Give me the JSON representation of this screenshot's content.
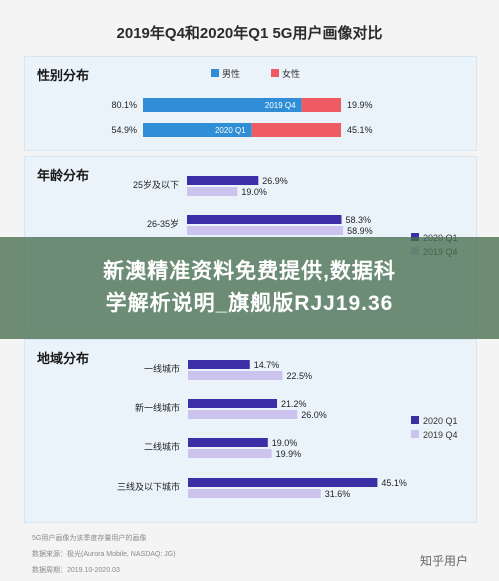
{
  "title": "2019年Q4和2020年Q1 5G用户画像对比",
  "banner": {
    "line1": "新澳精准资料免费提供,数据科",
    "line2": "学解析说明_旗舰版RJJ19.36"
  },
  "footer": {
    "note": "5G用户画像为该季度存量用户的画像",
    "source": "数据来源：极光(Aurora Mobile, NASDAQ: JG)",
    "period": "数据周期：2019.10-2020.03"
  },
  "brand": "知乎用户",
  "colors": {
    "male": "#2f8ed6",
    "female": "#ef5b63",
    "q1": "#3b2fa8",
    "q4": "#cbc3ee",
    "panel": "#eaf3fa"
  },
  "chart_data": [
    {
      "type": "bar",
      "title": "性别分布",
      "legend": [
        "男性",
        "女性"
      ],
      "categories": [
        "2019 Q4",
        "2020 Q1"
      ],
      "series": [
        {
          "name": "男性",
          "values": [
            80.1,
            54.9
          ]
        },
        {
          "name": "女性",
          "values": [
            19.9,
            45.1
          ]
        }
      ],
      "labels": {
        "male": [
          "80.1%",
          "54.9%"
        ],
        "female": [
          "19.9%",
          "45.1%"
        ]
      }
    },
    {
      "type": "bar",
      "title": "年龄分布",
      "legend": [
        "2020 Q1",
        "2019 Q4"
      ],
      "categories": [
        "25岁及以下",
        "26-35岁"
      ],
      "series": [
        {
          "name": "2020 Q1",
          "values": [
            26.9,
            58.3
          ]
        },
        {
          "name": "2019 Q4",
          "values": [
            19.0,
            58.9
          ]
        }
      ],
      "labels": {
        "q1": [
          "26.9%",
          "58.3%"
        ],
        "q4": [
          "19.0%",
          "58.9%"
        ]
      }
    },
    {
      "type": "bar",
      "title": "地域分布",
      "legend": [
        "2020 Q1",
        "2019 Q4"
      ],
      "categories": [
        "一线城市",
        "新一线城市",
        "二线城市",
        "三线及以下城市"
      ],
      "series": [
        {
          "name": "2020 Q1",
          "values": [
            14.7,
            21.2,
            19.0,
            45.1
          ]
        },
        {
          "name": "2019 Q4",
          "values": [
            22.5,
            26.0,
            19.9,
            31.6
          ]
        }
      ],
      "labels": {
        "q1": [
          "14.7%",
          "21.2%",
          "19.0%",
          "45.1%"
        ],
        "q4": [
          "22.5%",
          "26.0%",
          "19.9%",
          "31.6%"
        ]
      }
    }
  ]
}
